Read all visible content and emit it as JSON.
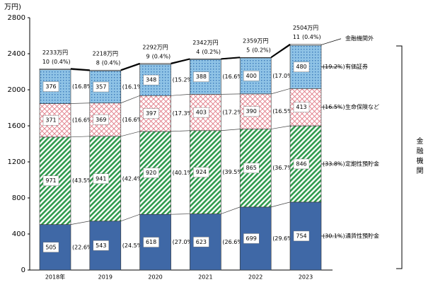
{
  "chart_data": {
    "type": "stacked_bar",
    "y_label": "万円)",
    "categories": [
      "2018年",
      "2019",
      "2020",
      "2021",
      "2022",
      "2023"
    ],
    "ylim": [
      0,
      2800
    ],
    "yticks": [
      0,
      400,
      800,
      1200,
      1600,
      2000,
      2400,
      2800
    ],
    "series": [
      {
        "name": "通貨性預貯金",
        "color": "#3f68a6",
        "pattern": "solid",
        "values": [
          505,
          543,
          618,
          623,
          699,
          754
        ],
        "shares": [
          "(22.6%)",
          "(24.5%)",
          "(27.0%)",
          "(26.6%)",
          "(29.6%)",
          "(30.1%)"
        ]
      },
      {
        "name": "定期性預貯金",
        "color": "#2f9a4c",
        "pattern": "diagonal",
        "values": [
          971,
          941,
          920,
          924,
          865,
          846
        ],
        "shares": [
          "(43.5%)",
          "(42.4%)",
          "(40.1%)",
          "(39.5%)",
          "(36.7%)",
          "(33.8%)"
        ]
      },
      {
        "name": "生命保険など",
        "color": "#e07a86",
        "pattern": "cross",
        "values": [
          371,
          369,
          397,
          403,
          390,
          413
        ],
        "shares": [
          "(16.6%)",
          "(16.6%)",
          "(17.3%)",
          "(17.2%)",
          "(16.5%)",
          "(16.5%)"
        ]
      },
      {
        "name": "有価証券",
        "color": "#8fc3e6",
        "pattern": "dots",
        "values": [
          376,
          357,
          348,
          388,
          400,
          480
        ],
        "shares": [
          "(16.8%)",
          "(16.1%)",
          "(15.2%)",
          "(16.6%)",
          "(17.0%)",
          "(19.2%)"
        ]
      },
      {
        "name": "金融機関外",
        "color": "#ffffff",
        "pattern": "solid",
        "values": [
          10,
          8,
          9,
          4,
          5,
          11
        ],
        "shares": [
          "(0.4%)",
          "(0.4%)",
          "(0.4%)",
          "(0.2%)",
          "(0.2%)",
          "(0.4%)"
        ]
      }
    ],
    "totals": [
      {
        "value": 2233,
        "label": "2233万円"
      },
      {
        "value": 2218,
        "label": "2218万円"
      },
      {
        "value": 2292,
        "label": "2292万円"
      },
      {
        "value": 2342,
        "label": "2342万円"
      },
      {
        "value": 2359,
        "label": "2359万円"
      },
      {
        "value": 2504,
        "label": "2504万円"
      }
    ],
    "bracket_label": "金融機関"
  }
}
